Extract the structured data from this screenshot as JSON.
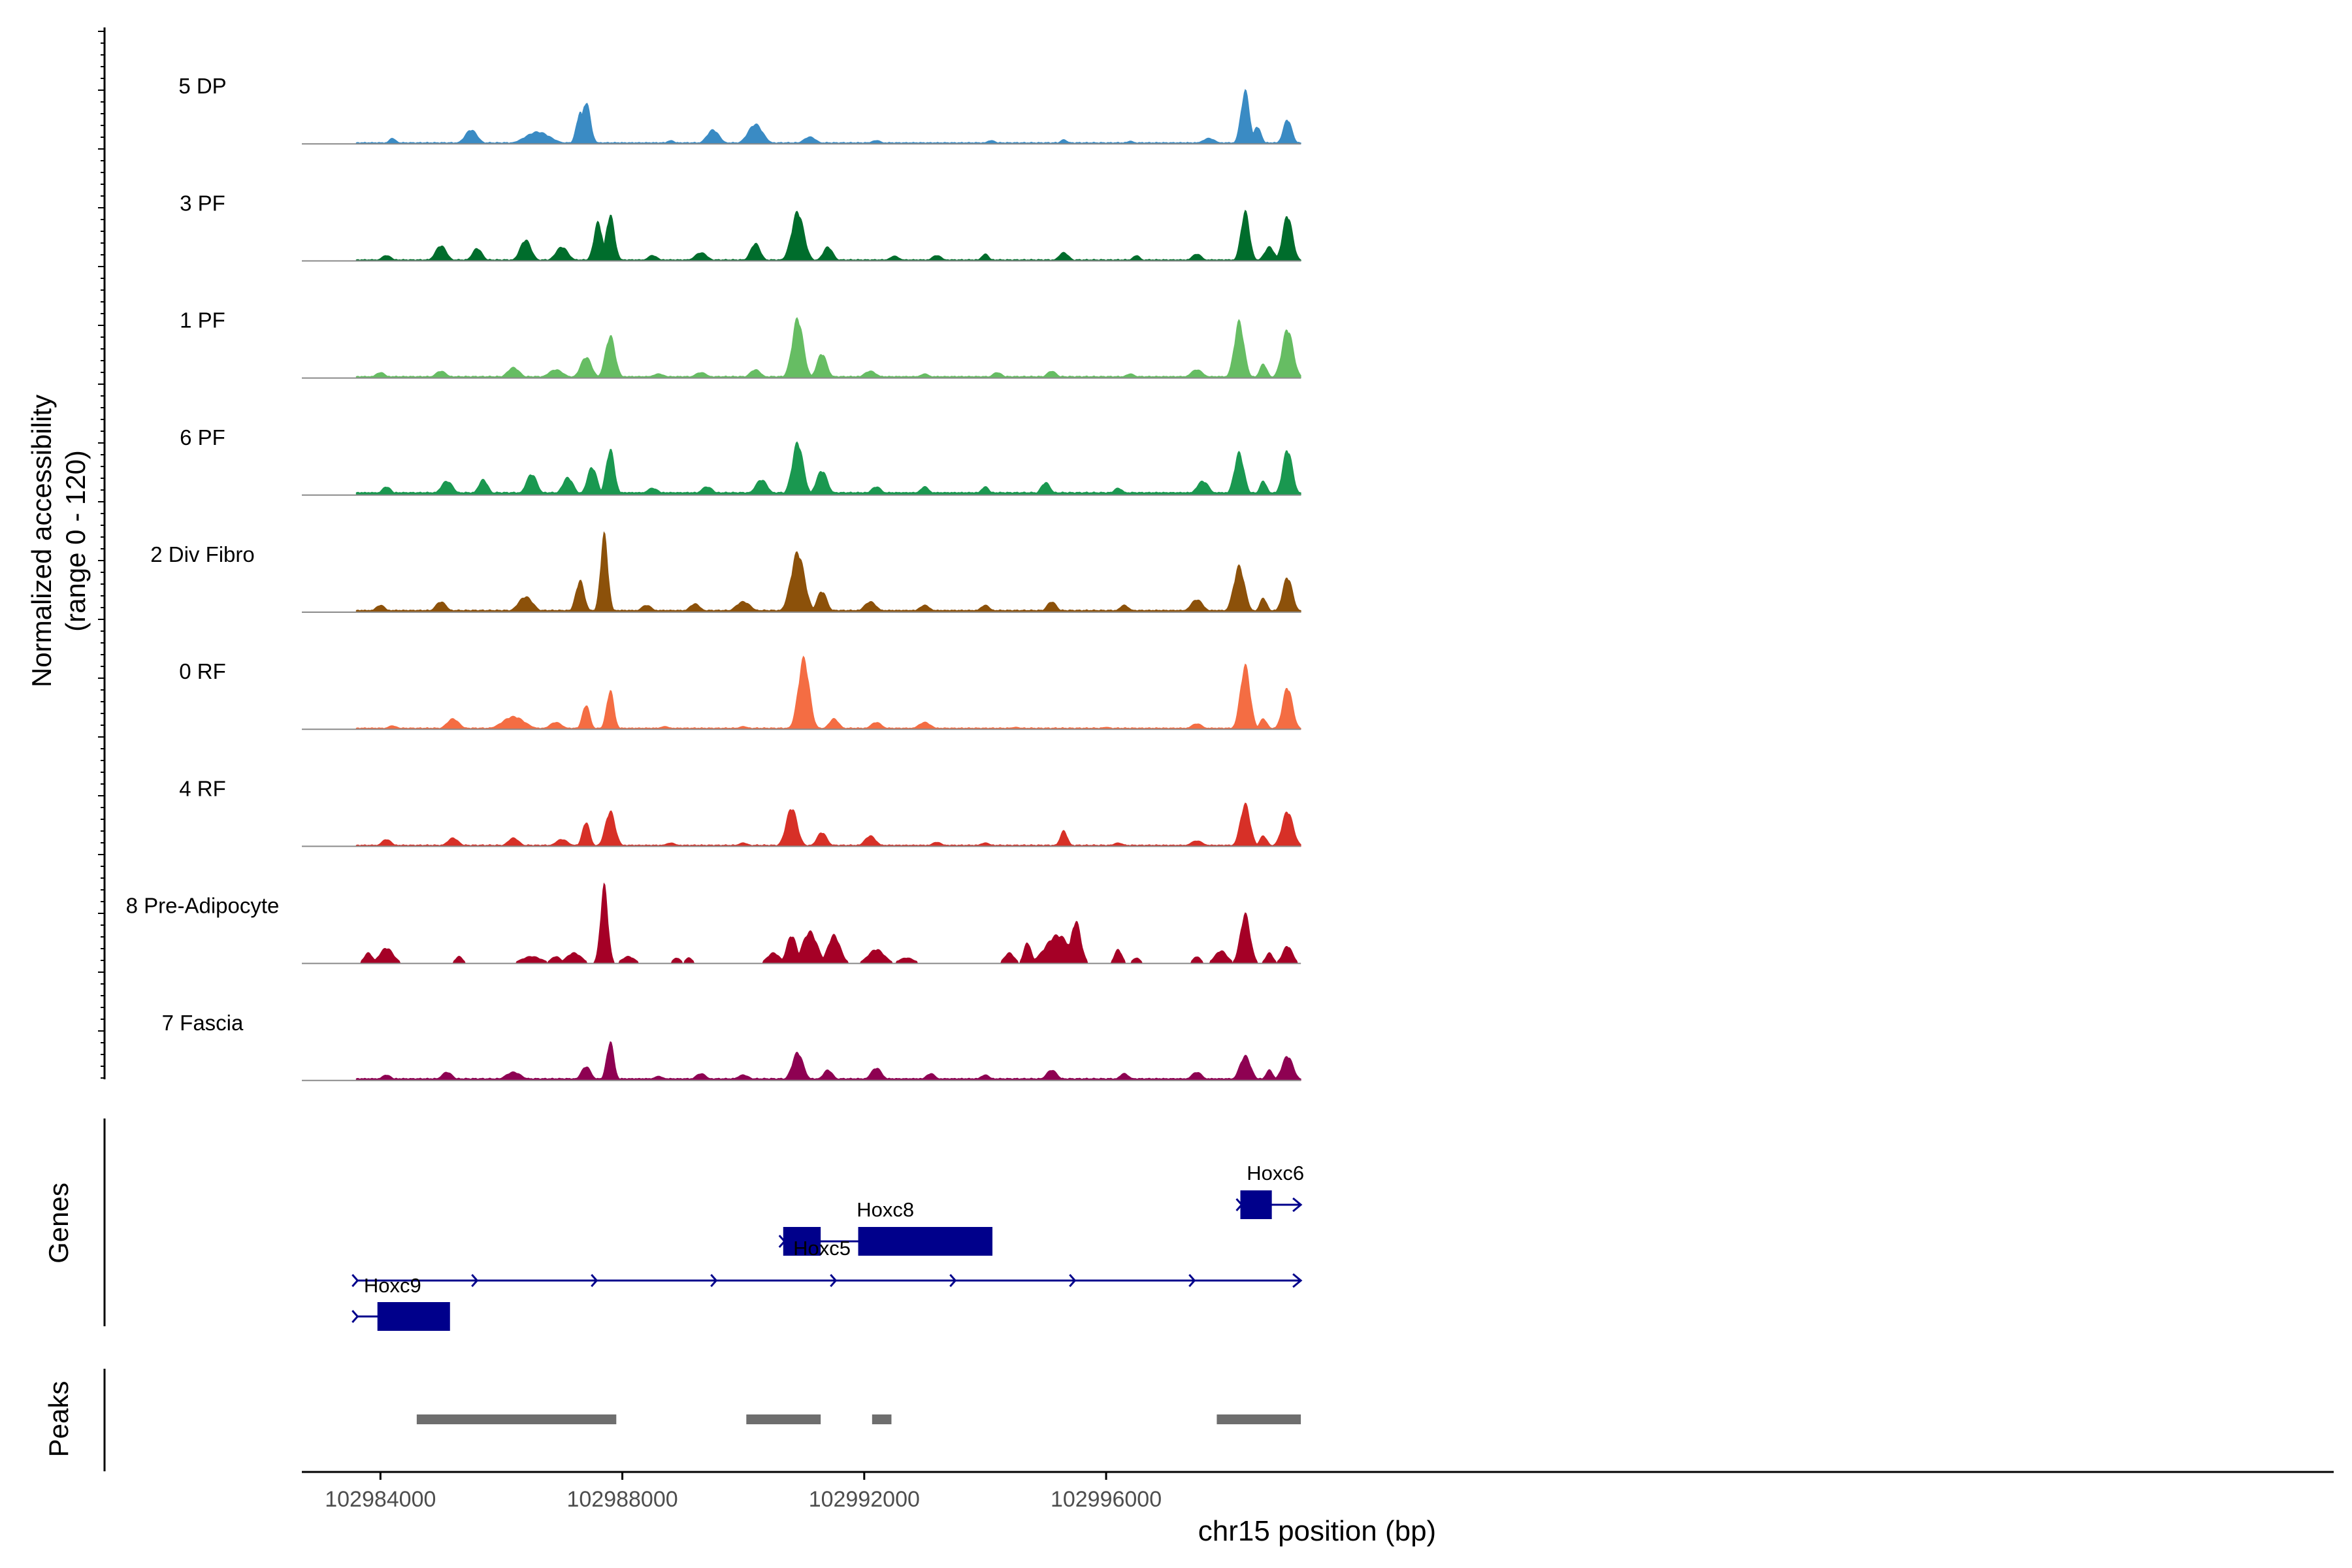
{
  "chart_data": {
    "type": "area",
    "title": "",
    "xlabel": "chr15 position (bp)",
    "ylabel": [
      "Normalized accessibility",
      "(range 0 - 120)"
    ],
    "yrange": [
      0,
      120
    ],
    "xlim": [
      102982700,
      103016300
    ],
    "x_ticks": [
      102984000,
      102988000,
      102992000,
      102996000
    ],
    "x_tick_labels": [
      "102984000",
      "102988000",
      "102992000",
      "102996000"
    ],
    "track_start": 102983600,
    "track_end": 102999220,
    "tracks": [
      {
        "name": "5 DP",
        "color": "#3a8bc4",
        "sparse": false,
        "baseline": [
          [
            102983600,
            1
          ],
          [
            102999220,
            1
          ]
        ],
        "peaks": [
          [
            102984200,
            8,
            60
          ],
          [
            102985500,
            20,
            100
          ],
          [
            102986600,
            17,
            200
          ],
          [
            102987300,
            45,
            60
          ],
          [
            102987400,
            60,
            70
          ],
          [
            102988800,
            5,
            60
          ],
          [
            102989500,
            20,
            100
          ],
          [
            102990200,
            28,
            120
          ],
          [
            102991100,
            10,
            100
          ],
          [
            102992200,
            5,
            80
          ],
          [
            102994100,
            5,
            70
          ],
          [
            102995300,
            6,
            60
          ],
          [
            102996400,
            4,
            60
          ],
          [
            102997700,
            8,
            100
          ],
          [
            102998300,
            75,
            70
          ],
          [
            102998500,
            25,
            60
          ],
          [
            102999000,
            35,
            70
          ]
        ]
      },
      {
        "name": "3 PF",
        "color": "#006d2c",
        "sparse": false,
        "baseline": [
          [
            102983600,
            1
          ],
          [
            102999220,
            1
          ]
        ],
        "peaks": [
          [
            102984100,
            8,
            80
          ],
          [
            102985000,
            22,
            90
          ],
          [
            102985600,
            18,
            80
          ],
          [
            102986400,
            30,
            90
          ],
          [
            102987000,
            20,
            100
          ],
          [
            102987600,
            55,
            70
          ],
          [
            102987800,
            65,
            70
          ],
          [
            102988500,
            8,
            80
          ],
          [
            102989300,
            12,
            100
          ],
          [
            102990200,
            25,
            80
          ],
          [
            102990900,
            70,
            100
          ],
          [
            102991400,
            20,
            80
          ],
          [
            102992500,
            7,
            80
          ],
          [
            102993200,
            8,
            80
          ],
          [
            102994000,
            10,
            60
          ],
          [
            102995300,
            12,
            80
          ],
          [
            102996500,
            8,
            60
          ],
          [
            102997500,
            10,
            80
          ],
          [
            102998300,
            70,
            70
          ],
          [
            102998700,
            20,
            80
          ],
          [
            102999000,
            65,
            80
          ]
        ]
      },
      {
        "name": "1 PF",
        "color": "#66bd63",
        "sparse": false,
        "baseline": [
          [
            102983600,
            1.5
          ],
          [
            102999220,
            1.5
          ]
        ],
        "peaks": [
          [
            102984000,
            8,
            80
          ],
          [
            102985000,
            10,
            90
          ],
          [
            102986200,
            15,
            100
          ],
          [
            102986900,
            12,
            120
          ],
          [
            102987400,
            30,
            90
          ],
          [
            102987800,
            60,
            80
          ],
          [
            102988600,
            6,
            100
          ],
          [
            102989300,
            8,
            100
          ],
          [
            102990200,
            12,
            90
          ],
          [
            102990900,
            85,
            90
          ],
          [
            102991300,
            35,
            80
          ],
          [
            102992100,
            10,
            100
          ],
          [
            102993000,
            6,
            80
          ],
          [
            102994200,
            8,
            80
          ],
          [
            102995100,
            10,
            80
          ],
          [
            102996400,
            6,
            80
          ],
          [
            102997500,
            12,
            100
          ],
          [
            102998200,
            80,
            80
          ],
          [
            102998600,
            20,
            60
          ],
          [
            102999000,
            70,
            90
          ]
        ]
      },
      {
        "name": "6 PF",
        "color": "#1a9850",
        "sparse": false,
        "baseline": [
          [
            102983600,
            3
          ],
          [
            102999220,
            3
          ]
        ],
        "peaks": [
          [
            102984100,
            12,
            80
          ],
          [
            102985100,
            20,
            100
          ],
          [
            102985700,
            22,
            80
          ],
          [
            102986500,
            30,
            90
          ],
          [
            102987100,
            25,
            90
          ],
          [
            102987500,
            40,
            80
          ],
          [
            102987800,
            65,
            70
          ],
          [
            102988500,
            10,
            100
          ],
          [
            102989400,
            12,
            100
          ],
          [
            102990300,
            22,
            100
          ],
          [
            102990900,
            75,
            90
          ],
          [
            102991300,
            35,
            90
          ],
          [
            102992200,
            12,
            90
          ],
          [
            102993000,
            12,
            80
          ],
          [
            102994000,
            12,
            70
          ],
          [
            102995000,
            18,
            80
          ],
          [
            102996200,
            10,
            80
          ],
          [
            102997600,
            20,
            100
          ],
          [
            102998200,
            60,
            80
          ],
          [
            102998600,
            20,
            60
          ],
          [
            102999000,
            65,
            80
          ]
        ]
      },
      {
        "name": "2 Div Fibro",
        "color": "#8c510a",
        "sparse": false,
        "baseline": [
          [
            102983600,
            2
          ],
          [
            102999220,
            2
          ]
        ],
        "peaks": [
          [
            102984000,
            10,
            80
          ],
          [
            102985000,
            15,
            90
          ],
          [
            102986400,
            22,
            120
          ],
          [
            102987300,
            45,
            70
          ],
          [
            102987700,
            110,
            60
          ],
          [
            102988400,
            10,
            90
          ],
          [
            102989200,
            12,
            90
          ],
          [
            102990000,
            15,
            120
          ],
          [
            102990900,
            85,
            110
          ],
          [
            102991300,
            30,
            80
          ],
          [
            102992100,
            15,
            100
          ],
          [
            102993000,
            10,
            90
          ],
          [
            102994000,
            10,
            80
          ],
          [
            102995100,
            15,
            80
          ],
          [
            102996300,
            10,
            80
          ],
          [
            102997500,
            18,
            100
          ],
          [
            102998200,
            65,
            90
          ],
          [
            102998600,
            20,
            60
          ],
          [
            102999000,
            50,
            80
          ]
        ]
      },
      {
        "name": "0 RF",
        "color": "#f46d43",
        "sparse": false,
        "baseline": [
          [
            102983600,
            1
          ],
          [
            102999220,
            1
          ]
        ],
        "peaks": [
          [
            102984200,
            5,
            80
          ],
          [
            102985200,
            15,
            100
          ],
          [
            102986200,
            18,
            180
          ],
          [
            102986900,
            10,
            100
          ],
          [
            102987400,
            35,
            60
          ],
          [
            102987800,
            55,
            60
          ],
          [
            102988700,
            4,
            80
          ],
          [
            102990000,
            4,
            80
          ],
          [
            102991000,
            100,
            90
          ],
          [
            102991500,
            15,
            80
          ],
          [
            102992200,
            10,
            90
          ],
          [
            102993000,
            10,
            100
          ],
          [
            102994500,
            3,
            80
          ],
          [
            102996000,
            3,
            80
          ],
          [
            102997500,
            8,
            90
          ],
          [
            102998300,
            90,
            80
          ],
          [
            102998600,
            15,
            60
          ],
          [
            102999000,
            60,
            80
          ]
        ]
      },
      {
        "name": "4 RF",
        "color": "#d73027",
        "sparse": false,
        "baseline": [
          [
            102983600,
            1
          ],
          [
            102999220,
            1
          ]
        ],
        "peaks": [
          [
            102984100,
            10,
            80
          ],
          [
            102985200,
            12,
            90
          ],
          [
            102986200,
            12,
            90
          ],
          [
            102987000,
            10,
            100
          ],
          [
            102987400,
            35,
            60
          ],
          [
            102987800,
            50,
            80
          ],
          [
            102988800,
            5,
            80
          ],
          [
            102990000,
            5,
            80
          ],
          [
            102990800,
            55,
            90
          ],
          [
            102991300,
            20,
            80
          ],
          [
            102992100,
            15,
            90
          ],
          [
            102993200,
            6,
            80
          ],
          [
            102994000,
            5,
            80
          ],
          [
            102995300,
            22,
            60
          ],
          [
            102996200,
            5,
            80
          ],
          [
            102997500,
            8,
            100
          ],
          [
            102998300,
            60,
            80
          ],
          [
            102998600,
            15,
            60
          ],
          [
            102999000,
            50,
            90
          ]
        ]
      },
      {
        "name": "8 Pre-Adipocyte",
        "color": "#a50026",
        "sparse": true,
        "baseline": [],
        "peaks": [
          [
            102983800,
            15,
            70
          ],
          [
            102984100,
            22,
            110
          ],
          [
            102985300,
            10,
            60
          ],
          [
            102986500,
            10,
            160
          ],
          [
            102986900,
            10,
            80
          ],
          [
            102987200,
            15,
            120
          ],
          [
            102987700,
            110,
            60
          ],
          [
            102988100,
            10,
            100
          ],
          [
            102988900,
            8,
            60
          ],
          [
            102989100,
            8,
            60
          ],
          [
            102990500,
            15,
            100
          ],
          [
            102990800,
            40,
            80
          ],
          [
            102991100,
            45,
            120
          ],
          [
            102991500,
            40,
            100
          ],
          [
            102992200,
            20,
            130
          ],
          [
            102992700,
            8,
            120
          ],
          [
            102994400,
            15,
            80
          ],
          [
            102994700,
            30,
            60
          ],
          [
            102995200,
            40,
            200
          ],
          [
            102995500,
            60,
            80
          ],
          [
            102996200,
            20,
            60
          ],
          [
            102996500,
            8,
            60
          ],
          [
            102997500,
            10,
            60
          ],
          [
            102997900,
            18,
            100
          ],
          [
            102998300,
            70,
            80
          ],
          [
            102998700,
            15,
            60
          ],
          [
            102999000,
            25,
            80
          ]
        ]
      },
      {
        "name": "7 Fascia",
        "color": "#8e0152",
        "sparse": false,
        "baseline": [
          [
            102983600,
            2
          ],
          [
            102999220,
            2
          ]
        ],
        "peaks": [
          [
            102984100,
            8,
            80
          ],
          [
            102985100,
            12,
            90
          ],
          [
            102986200,
            12,
            130
          ],
          [
            102987400,
            20,
            80
          ],
          [
            102987800,
            55,
            60
          ],
          [
            102988600,
            6,
            90
          ],
          [
            102989300,
            10,
            90
          ],
          [
            102990000,
            8,
            100
          ],
          [
            102990900,
            40,
            90
          ],
          [
            102991400,
            15,
            80
          ],
          [
            102992200,
            18,
            90
          ],
          [
            102993100,
            10,
            80
          ],
          [
            102994000,
            8,
            80
          ],
          [
            102995100,
            15,
            90
          ],
          [
            102996300,
            10,
            80
          ],
          [
            102997500,
            12,
            90
          ],
          [
            102998300,
            35,
            90
          ],
          [
            102998700,
            15,
            60
          ],
          [
            102999000,
            35,
            90
          ]
        ]
      }
    ],
    "genes_panel_label": "Genes",
    "genes_color": "#00008b",
    "genes": [
      {
        "name": "Hoxc6",
        "start": 102998220,
        "end": 102999220,
        "exons": [
          [
            102998220,
            102998740
          ]
        ],
        "strand": "+",
        "label_x": 102998800
      },
      {
        "name": "Hoxc8",
        "start": 102990660,
        "end": 102994000,
        "exons": [
          [
            102990660,
            102991280
          ],
          [
            102991900,
            102994120
          ]
        ],
        "strand": "+",
        "label_x": 102992350
      },
      {
        "name": "Hoxc5",
        "start": 102983600,
        "end": 102999220,
        "exons": [],
        "strand": "+",
        "label_x": 102991300
      },
      {
        "name": "Hoxc9",
        "start": 102983600,
        "end": 102985100,
        "exons": [
          [
            102983950,
            102985150
          ]
        ],
        "strand": "+",
        "label_x": 102984200
      }
    ],
    "peaks_panel_label": "Peaks",
    "peaks_color": "#6e6e6e",
    "peak_regions": [
      [
        102984600,
        102987900
      ],
      [
        102990050,
        102991280
      ],
      [
        102992130,
        102992450
      ],
      [
        102997830,
        102999220
      ]
    ]
  }
}
